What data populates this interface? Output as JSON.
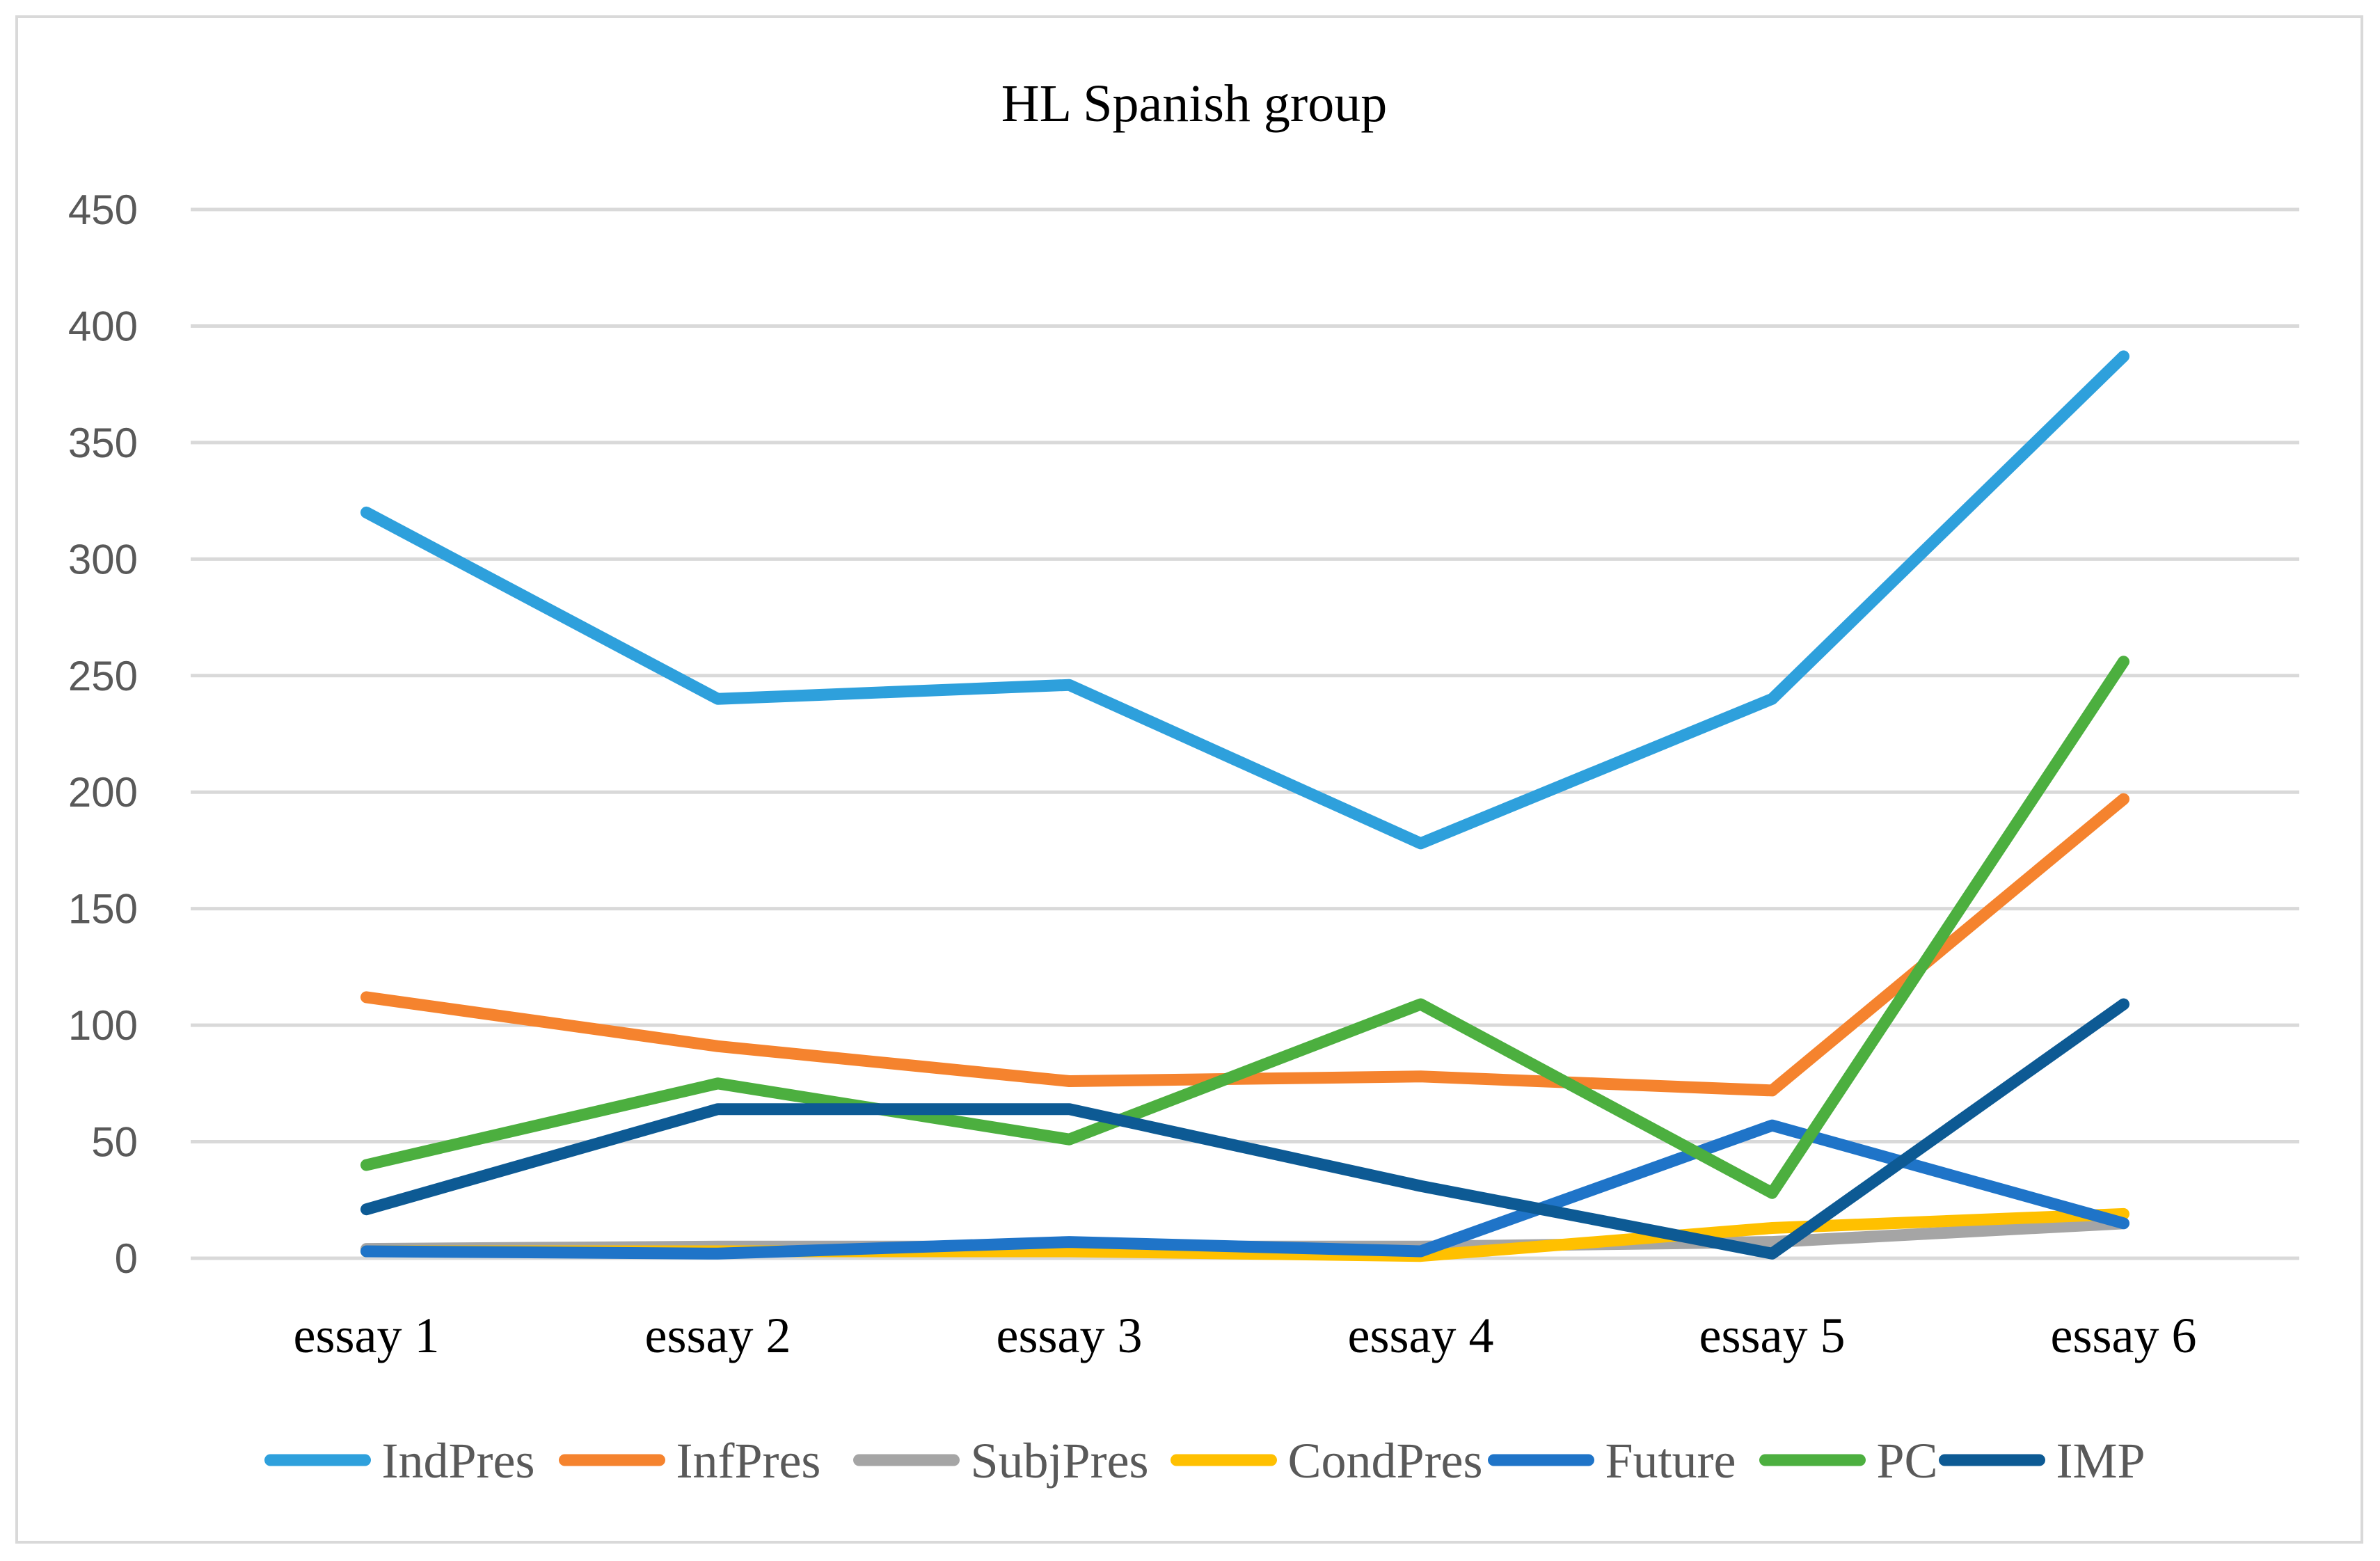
{
  "chart_data": {
    "type": "line",
    "title": "HL Spanish group",
    "xlabel": "",
    "ylabel": "",
    "ylim": [
      0,
      450
    ],
    "yticks": [
      0,
      50,
      100,
      150,
      200,
      250,
      300,
      350,
      400,
      450
    ],
    "grid": true,
    "legend_position": "bottom",
    "categories": [
      "essay 1",
      "essay 2",
      "essay 3",
      "essay 4",
      "essay 5",
      "essay 6"
    ],
    "series": [
      {
        "name": "IndPres",
        "color": "#2ea0dc",
        "values": [
          320,
          240,
          246,
          178,
          240,
          387
        ]
      },
      {
        "name": "InfPres",
        "color": "#f5832e",
        "values": [
          112,
          91,
          76,
          78,
          72,
          197
        ]
      },
      {
        "name": "SubjPres",
        "color": "#a5a5a5",
        "values": [
          4,
          5,
          5,
          5,
          7,
          15
        ]
      },
      {
        "name": "CondPres",
        "color": "#ffc000",
        "values": [
          3,
          3,
          3,
          1,
          13,
          19
        ]
      },
      {
        "name": "Future",
        "color": "#1f74c8",
        "values": [
          3,
          2,
          7,
          3,
          57,
          15
        ]
      },
      {
        "name": "PC",
        "color": "#4caf3f",
        "values": [
          40,
          75,
          51,
          109,
          28,
          256
        ]
      },
      {
        "name": "IMP",
        "color": "#0d5a94",
        "values": [
          21,
          64,
          64,
          31,
          2,
          109
        ]
      }
    ]
  }
}
